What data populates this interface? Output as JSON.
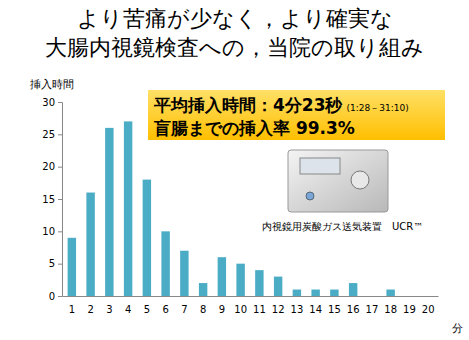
{
  "chart_data": {
    "type": "bar",
    "title": [
      "より苦痛が少なく，より確実な",
      "大腸内視鏡検査への，当院の取り組み"
    ],
    "y_label": "挿入時間",
    "x_label": "分",
    "categories": [
      "1",
      "2",
      "3",
      "4",
      "5",
      "6",
      "7",
      "8",
      "9",
      "10",
      "11",
      "12",
      "13",
      "14",
      "15",
      "16",
      "17",
      "18",
      "19",
      "20"
    ],
    "values": [
      9,
      16,
      26,
      27,
      18,
      10,
      7,
      2,
      6,
      5,
      4,
      3,
      1,
      1,
      1,
      2,
      0,
      1,
      0,
      0
    ],
    "color": "#4bacc6",
    "ylim": [
      0,
      30
    ],
    "yticks": [
      0,
      5,
      10,
      15,
      20,
      25,
      30
    ],
    "grid": false,
    "annotations": [
      "平均挿入時間：4分23秒",
      "(1:28－31:10)",
      "盲腸までの挿入率 99.3%",
      "内視鏡用炭酸ガス送気装置　UCR™"
    ]
  }
}
